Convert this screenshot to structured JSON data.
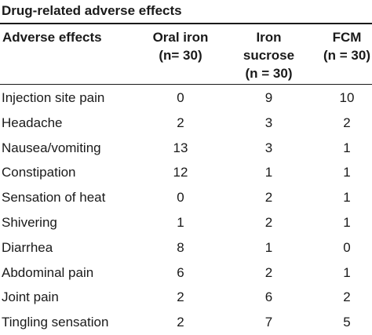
{
  "table": {
    "title": "Drug-related adverse effects",
    "headers": {
      "effect": [
        "Adverse effects"
      ],
      "oral": [
        "Oral iron",
        "(n= 30)"
      ],
      "sucrose": [
        "Iron",
        "sucrose",
        "(n = 30)"
      ],
      "fcm": [
        "FCM",
        "(n = 30)"
      ]
    },
    "rows": [
      {
        "effect": "Injection site pain",
        "oral": "0",
        "sucrose": "9",
        "fcm": "10"
      },
      {
        "effect": "Headache",
        "oral": "2",
        "sucrose": "3",
        "fcm": "2"
      },
      {
        "effect": "Nausea/vomiting",
        "oral": "13",
        "sucrose": "3",
        "fcm": "1"
      },
      {
        "effect": "Constipation",
        "oral": "12",
        "sucrose": "1",
        "fcm": "1"
      },
      {
        "effect": "Sensation of heat",
        "oral": "0",
        "sucrose": "2",
        "fcm": "1"
      },
      {
        "effect": "Shivering",
        "oral": "1",
        "sucrose": "2",
        "fcm": "1"
      },
      {
        "effect": "Diarrhea",
        "oral": "8",
        "sucrose": "1",
        "fcm": "0"
      },
      {
        "effect": "Abdominal pain",
        "oral": "6",
        "sucrose": "2",
        "fcm": "1"
      },
      {
        "effect": "Joint pain",
        "oral": "2",
        "sucrose": "6",
        "fcm": "2"
      },
      {
        "effect": "Tingling sensation",
        "oral": "2",
        "sucrose": "7",
        "fcm": "5"
      }
    ]
  }
}
